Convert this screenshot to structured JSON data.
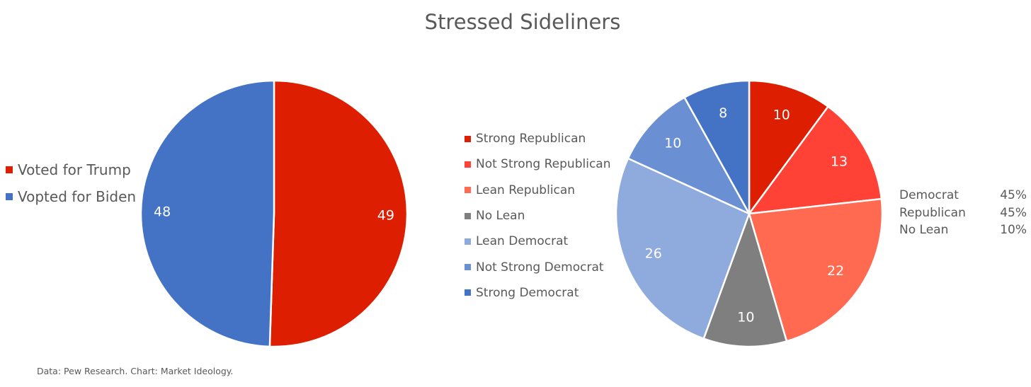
{
  "title": "Stressed Sideliners",
  "source_note": "Data: Pew Research. Chart: Market Ideology.",
  "chart_data": [
    {
      "type": "pie",
      "title": "Stressed Sideliners",
      "legend_position": "left",
      "slices": [
        {
          "label": "Voted for Trump",
          "value": 49,
          "color": "#DD1E00"
        },
        {
          "label": "Vopted for Biden",
          "value": 48,
          "color": "#4472C4"
        }
      ]
    },
    {
      "type": "pie",
      "legend_position": "left",
      "slices": [
        {
          "label": "Strong Republican",
          "value": 10,
          "color": "#DD1E00"
        },
        {
          "label": "Not Strong Republican",
          "value": 13,
          "color": "#FF4136"
        },
        {
          "label": "Lean Republican",
          "value": 22,
          "color": "#FF6A50"
        },
        {
          "label": "No Lean",
          "value": 10,
          "color": "#7F7F7F"
        },
        {
          "label": "Lean Democrat",
          "value": 26,
          "color": "#8FAADC"
        },
        {
          "label": "Not Strong Democrat",
          "value": 10,
          "color": "#6A8FD2"
        },
        {
          "label": "Strong Democrat",
          "value": 8,
          "color": "#4472C4"
        }
      ]
    }
  ],
  "summary_table": [
    {
      "label": "Democrat",
      "value": "45%"
    },
    {
      "label": "Republican",
      "value": "45%"
    },
    {
      "label": "No Lean",
      "value": "10%"
    }
  ]
}
